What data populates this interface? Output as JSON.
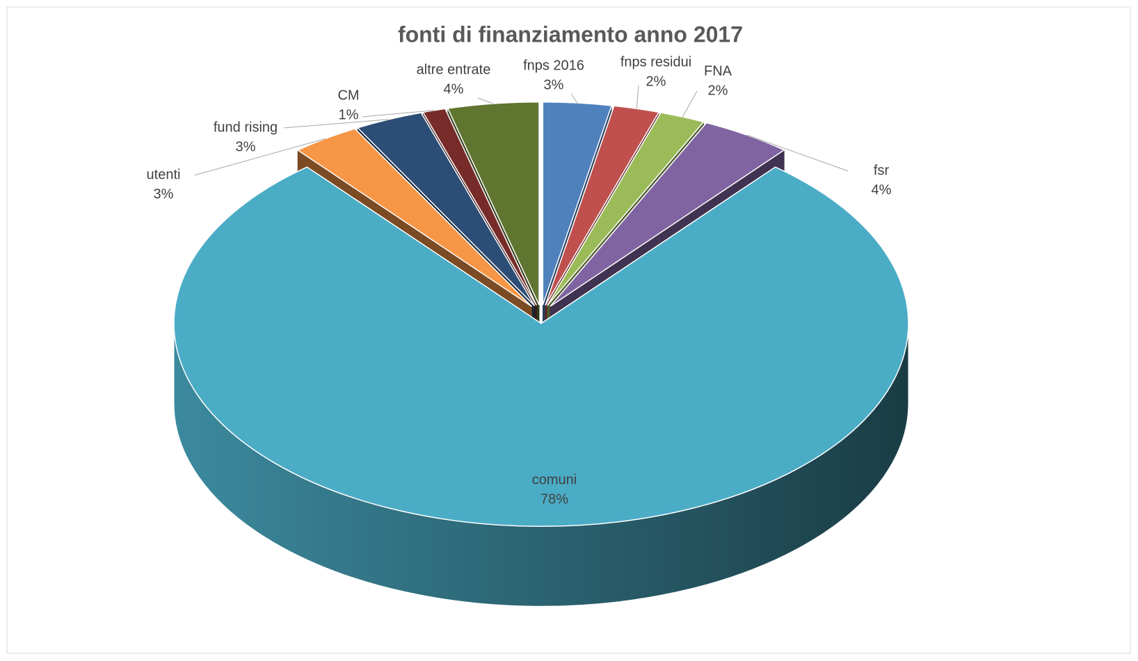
{
  "chart_data": {
    "type": "pie",
    "title": "fonti di finanziamento anno 2017",
    "categories": [
      "fnps 2016",
      "fnps residui",
      "FNA",
      "fsr",
      "comuni",
      "utenti",
      "fund rising",
      "CM",
      "altre entrate"
    ],
    "values": [
      3,
      2,
      2,
      4,
      78,
      3,
      3,
      1,
      4
    ],
    "value_labels": [
      "3%",
      "2%",
      "2%",
      "4%",
      "78%",
      "3%",
      "3%",
      "1%",
      "4%"
    ],
    "colors": [
      "#4f81bd",
      "#c0504d",
      "#9bbb59",
      "#8064a2",
      "#4bacc6",
      "#f79646",
      "#2c4d75",
      "#772c2a",
      "#5f7530"
    ]
  }
}
